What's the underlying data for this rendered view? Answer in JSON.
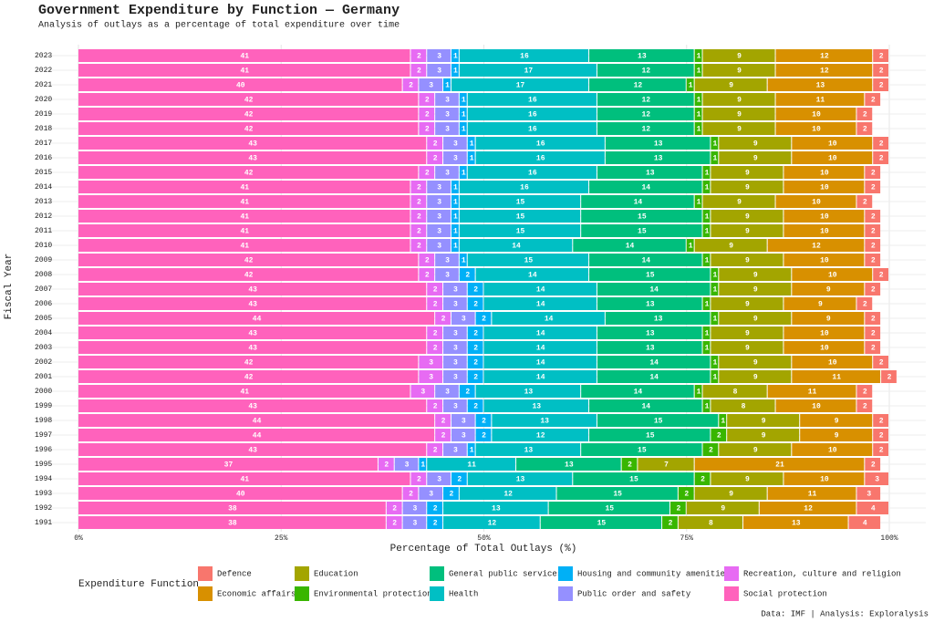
{
  "chart_data": {
    "type": "stacked-barh",
    "title": "Government Expenditure by Function — Germany",
    "subtitle": "Analysis of outlays as a percentage of total expenditure over time",
    "x_label": "Percentage of Total Outlays (%)",
    "y_label": "Fiscal Year",
    "legend_title": "Expenditure Function",
    "caption": "Data: IMF | Analysis: Exploralysis",
    "categories": [
      "2023",
      "2022",
      "2021",
      "2020",
      "2019",
      "2018",
      "2017",
      "2016",
      "2015",
      "2014",
      "2013",
      "2012",
      "2011",
      "2010",
      "2009",
      "2008",
      "2007",
      "2006",
      "2005",
      "2004",
      "2003",
      "2002",
      "2001",
      "2000",
      "1999",
      "1998",
      "1997",
      "1996",
      "1995",
      "1994",
      "1993",
      "1992",
      "1991"
    ],
    "xlim": [
      0,
      100
    ],
    "xticks": [
      {
        "value": 0,
        "label": "0%"
      },
      {
        "value": 25,
        "label": "25%"
      },
      {
        "value": 50,
        "label": "50%"
      },
      {
        "value": 75,
        "label": "75%"
      },
      {
        "value": 100,
        "label": "100%"
      }
    ],
    "grid": true,
    "series": [
      {
        "name": "Defence",
        "color": "#F8766D",
        "values": [
          2,
          2,
          2,
          2,
          2,
          2,
          2,
          2,
          2,
          2,
          2,
          2,
          2,
          2,
          2,
          2,
          2,
          2,
          2,
          2,
          2,
          2,
          2,
          2,
          2,
          2,
          2,
          2,
          2,
          3,
          3,
          4,
          4
        ]
      },
      {
        "name": "Economic affairs",
        "color": "#D89000",
        "values": [
          12,
          12,
          13,
          11,
          10,
          10,
          10,
          10,
          10,
          10,
          10,
          10,
          10,
          12,
          10,
          10,
          9,
          9,
          9,
          10,
          10,
          10,
          11,
          11,
          10,
          9,
          9,
          10,
          21,
          10,
          11,
          12,
          13
        ]
      },
      {
        "name": "Education",
        "color": "#A3A500",
        "values": [
          9,
          9,
          9,
          9,
          9,
          9,
          9,
          9,
          9,
          9,
          9,
          9,
          9,
          9,
          9,
          9,
          9,
          9,
          9,
          9,
          9,
          9,
          9,
          8,
          8,
          9,
          9,
          9,
          7,
          9,
          9,
          9,
          8
        ]
      },
      {
        "name": "Environmental protection",
        "color": "#39B600",
        "values": [
          1,
          1,
          1,
          1,
          1,
          1,
          1,
          1,
          1,
          1,
          1,
          1,
          1,
          1,
          1,
          1,
          1,
          1,
          1,
          1,
          1,
          1,
          1,
          1,
          1,
          1,
          2,
          2,
          2,
          2,
          2,
          2,
          2
        ]
      },
      {
        "name": "General public services",
        "color": "#00BF7D",
        "values": [
          13,
          12,
          12,
          12,
          12,
          12,
          13,
          13,
          13,
          14,
          14,
          15,
          15,
          14,
          14,
          15,
          14,
          13,
          13,
          13,
          13,
          14,
          14,
          14,
          14,
          15,
          15,
          15,
          13,
          15,
          15,
          15,
          15
        ]
      },
      {
        "name": "Health",
        "color": "#00BFC4",
        "values": [
          16,
          17,
          17,
          16,
          16,
          16,
          16,
          16,
          16,
          16,
          15,
          15,
          15,
          14,
          15,
          14,
          14,
          14,
          14,
          14,
          14,
          14,
          14,
          13,
          13,
          13,
          12,
          13,
          11,
          13,
          12,
          13,
          12
        ]
      },
      {
        "name": "Housing and community amenities",
        "color": "#00B0F6",
        "values": [
          1,
          1,
          1,
          1,
          1,
          1,
          1,
          1,
          1,
          1,
          1,
          1,
          1,
          1,
          1,
          2,
          2,
          2,
          2,
          2,
          2,
          2,
          2,
          2,
          2,
          2,
          2,
          1,
          1,
          2,
          2,
          2,
          2
        ]
      },
      {
        "name": "Public order and safety",
        "color": "#9590FF",
        "values": [
          3,
          3,
          3,
          3,
          3,
          3,
          3,
          3,
          3,
          3,
          3,
          3,
          3,
          3,
          3,
          3,
          3,
          3,
          3,
          3,
          3,
          3,
          3,
          3,
          3,
          3,
          3,
          3,
          3,
          3,
          3,
          3,
          3
        ]
      },
      {
        "name": "Recreation, culture and religion",
        "color": "#E76BF3",
        "values": [
          2,
          2,
          2,
          2,
          2,
          2,
          2,
          2,
          2,
          2,
          2,
          2,
          2,
          2,
          2,
          2,
          2,
          2,
          2,
          2,
          2,
          3,
          3,
          3,
          2,
          2,
          2,
          2,
          2,
          2,
          2,
          2,
          2
        ]
      },
      {
        "name": "Social protection",
        "color": "#FF62BC",
        "values": [
          41,
          41,
          40,
          42,
          42,
          42,
          43,
          43,
          42,
          41,
          41,
          41,
          41,
          41,
          42,
          42,
          43,
          43,
          44,
          43,
          43,
          42,
          42,
          41,
          43,
          44,
          44,
          43,
          37,
          41,
          40,
          38,
          38
        ]
      }
    ]
  }
}
